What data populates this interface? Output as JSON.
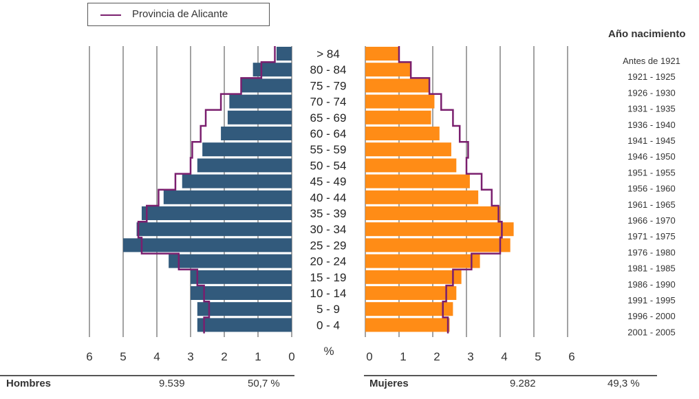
{
  "legend": {
    "label": "Provincia de Alicante",
    "color": "#7a1f6e"
  },
  "colors": {
    "men": "#325a7c",
    "women": "#ff8c16",
    "province_line": "#7a1f6e",
    "grid": "#444444"
  },
  "year_column_title": "Año nacimiento",
  "summary": {
    "men_label": "Hombres",
    "men_count": "9.539",
    "men_pct": "50,7 %",
    "women_label": "Mujeres",
    "women_count": "9.282",
    "women_pct": "49,3 %"
  },
  "chart_data": {
    "type": "bar",
    "orientation": "horizontal-population-pyramid",
    "axis_unit": "%",
    "xlim": [
      0,
      6
    ],
    "x_ticks_left": [
      "6",
      "5",
      "4",
      "3",
      "2",
      "1",
      "0"
    ],
    "x_ticks_right": [
      "0",
      "1",
      "2",
      "3",
      "4",
      "5",
      "6"
    ],
    "categories": [
      "> 84",
      "80 - 84",
      "75 - 79",
      "70 - 74",
      "65 - 69",
      "60 - 64",
      "55 - 59",
      "50 - 54",
      "45 - 49",
      "40 - 44",
      "35 - 39",
      "30 - 34",
      "25 - 29",
      "20 - 24",
      "15 - 19",
      "10 - 14",
      "5 - 9",
      "0 - 4"
    ],
    "birth_years": [
      "Antes de 1921",
      "1921 - 1925",
      "1926 - 1930",
      "1931 - 1935",
      "1936 - 1940",
      "1941 - 1945",
      "1946 - 1950",
      "1951 - 1955",
      "1956 - 1960",
      "1961 - 1965",
      "1966 - 1970",
      "1971 - 1975",
      "1976 - 1980",
      "1981 - 1985",
      "1986 - 1990",
      "1991 - 1995",
      "1996 - 2000",
      "2001 - 2005"
    ],
    "series": [
      {
        "name": "Hombres",
        "values": [
          0.45,
          1.15,
          1.5,
          1.85,
          1.9,
          2.1,
          2.65,
          2.8,
          3.25,
          3.8,
          4.45,
          4.6,
          5.0,
          3.65,
          3.0,
          3.0,
          2.8,
          2.8
        ]
      },
      {
        "name": "Mujeres",
        "values": [
          1.0,
          1.35,
          1.9,
          2.05,
          1.95,
          2.2,
          2.55,
          2.7,
          3.1,
          3.35,
          4.0,
          4.4,
          4.3,
          3.4,
          2.85,
          2.7,
          2.6,
          2.5
        ]
      },
      {
        "name": "Provincia de Alicante",
        "values_men": [
          0.5,
          0.9,
          1.5,
          2.1,
          2.55,
          2.7,
          2.95,
          3.0,
          3.45,
          3.95,
          4.3,
          4.55,
          4.45,
          3.35,
          2.8,
          2.6,
          2.45,
          2.6
        ],
        "values_women": [
          1.0,
          1.35,
          1.9,
          2.25,
          2.6,
          2.8,
          3.05,
          3.0,
          3.45,
          3.75,
          3.95,
          4.05,
          4.0,
          3.15,
          2.6,
          2.4,
          2.3,
          2.45
        ]
      }
    ]
  }
}
